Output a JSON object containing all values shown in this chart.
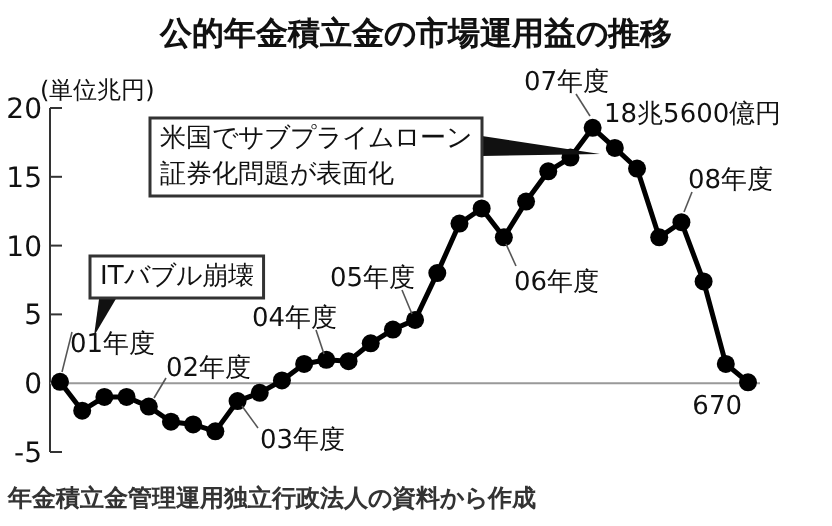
{
  "chart_data": {
    "type": "line",
    "title": "公的年金積立金の市場運用益の推移",
    "ylabel": "(単位兆円)",
    "categories": [
      null,
      null,
      null,
      null,
      null,
      null,
      null,
      null,
      null,
      null,
      null,
      null,
      null,
      null,
      null,
      null,
      null,
      null,
      null,
      null,
      null,
      null,
      null,
      null,
      null,
      null,
      null,
      null,
      null,
      null,
      null,
      null
    ],
    "series": [
      {
        "color": "#000000",
        "values": [
          0.1,
          -2,
          -1,
          -1,
          -1.7,
          -2.8,
          -3,
          -3.5,
          -1.3,
          -0.7,
          0.2,
          1.4,
          1.7,
          1.6,
          2.9,
          3.9,
          4.6,
          8.0,
          11.6,
          12.7,
          10.6,
          13.2,
          15.4,
          16.4,
          18.56,
          17.1,
          15.6,
          10.6,
          11.7,
          7.4,
          1.4,
          0.067
        ]
      }
    ],
    "ylim": [
      -5,
      20
    ],
    "yticks": [
      -5,
      0,
      5,
      10,
      15,
      20
    ],
    "tick_labels": "y",
    "marker": "circle",
    "line_style": "solid",
    "ref_lines": [
      {
        "axis": "y",
        "value": 0,
        "color": "#999999"
      }
    ],
    "annotations": [
      "米国でサブプライムローン",
      "証券化問題が表面化",
      "ITバブル崩壊",
      "01年度",
      "02年度",
      "03年度",
      "04年度",
      "05年度",
      "06年度",
      "07年度",
      "18兆5600億円",
      "08年度",
      "670",
      "年金積立金管理運用独立行政法人の資料から作成"
    ]
  }
}
